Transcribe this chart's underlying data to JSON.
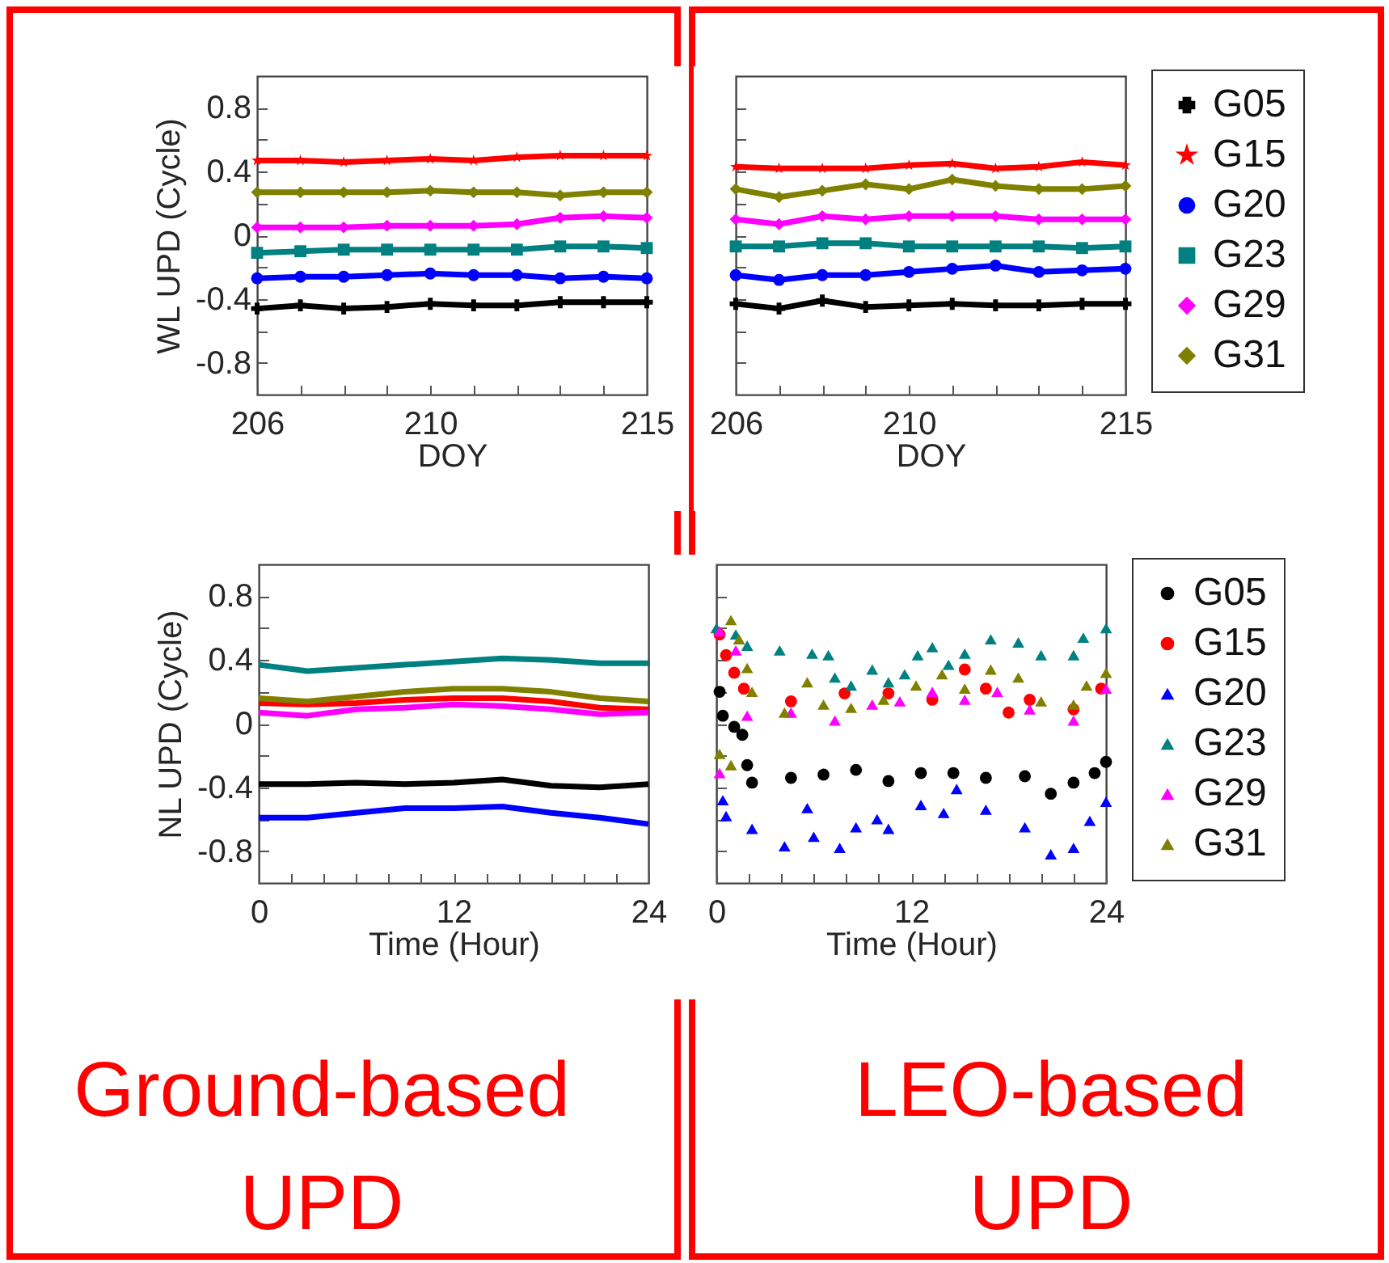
{
  "chart_data": [
    {
      "type": "line",
      "xlabel": "DOY",
      "ylabel": "WL UPD (Cycle)",
      "x": [
        206,
        207,
        208,
        209,
        210,
        211,
        212,
        213,
        214,
        215
      ],
      "xlim": [
        206,
        215
      ],
      "xticks": [
        206,
        {
          "value": 207,
          "label": null
        },
        {
          "value": 208,
          "label": null
        },
        {
          "value": 209,
          "label": null
        },
        210,
        {
          "value": 211,
          "label": null
        },
        {
          "value": 212,
          "label": null
        },
        {
          "value": 213,
          "label": null
        },
        {
          "value": 214,
          "label": null
        },
        215
      ],
      "ylim": [
        -1,
        1
      ],
      "yticks": [
        {
          "value": -0.8,
          "label": "-0.8"
        },
        {
          "value": -0.6,
          "label": null
        },
        {
          "value": -0.4,
          "label": "-0.4"
        },
        {
          "value": -0.2,
          "label": null
        },
        0,
        {
          "value": 0.2,
          "label": null
        },
        0.4,
        {
          "value": 0.6,
          "label": null
        },
        0.8
      ],
      "series": [
        {
          "color": "#000000",
          "marker": "cross",
          "values": [
            -0.46,
            -0.44,
            -0.46,
            -0.45,
            -0.43,
            -0.44,
            -0.44,
            -0.42,
            -0.42,
            -0.42
          ]
        },
        {
          "color": "#ff0000",
          "marker": "star",
          "values": [
            0.47,
            0.47,
            0.46,
            0.47,
            0.48,
            0.47,
            0.49,
            0.5,
            0.5,
            0.5
          ]
        },
        {
          "color": "#0000ff",
          "marker": "circle",
          "values": [
            -0.27,
            -0.26,
            -0.26,
            -0.25,
            -0.24,
            -0.25,
            -0.25,
            -0.27,
            -0.26,
            -0.27
          ]
        },
        {
          "color": "#008080",
          "marker": "square",
          "values": [
            -0.11,
            -0.1,
            -0.09,
            -0.09,
            -0.09,
            -0.09,
            -0.09,
            -0.07,
            -0.07,
            -0.08
          ]
        },
        {
          "color": "#ff00ff",
          "marker": "diamond",
          "values": [
            0.05,
            0.05,
            0.05,
            0.06,
            0.06,
            0.06,
            0.07,
            0.11,
            0.12,
            0.11
          ]
        },
        {
          "color": "#808000",
          "marker": "diamond",
          "values": [
            0.27,
            0.27,
            0.27,
            0.27,
            0.28,
            0.27,
            0.27,
            0.25,
            0.27,
            0.27
          ]
        }
      ]
    },
    {
      "type": "line",
      "xlabel": "DOY",
      "tick_labels": "x",
      "legend": "right",
      "x": [
        206,
        207,
        208,
        209,
        210,
        211,
        212,
        213,
        214,
        215
      ],
      "xlim": [
        206,
        215
      ],
      "xticks": [
        206,
        {
          "value": 207,
          "label": null
        },
        {
          "value": 208,
          "label": null
        },
        {
          "value": 209,
          "label": null
        },
        210,
        {
          "value": 211,
          "label": null
        },
        {
          "value": 212,
          "label": null
        },
        {
          "value": 213,
          "label": null
        },
        {
          "value": 214,
          "label": null
        },
        215
      ],
      "ylim": [
        -1,
        1
      ],
      "yticks": [
        -0.8,
        -0.6,
        -0.4,
        -0.2,
        0,
        0.2,
        0.4,
        0.6,
        0.8
      ],
      "series": [
        {
          "name": "G05",
          "color": "#000000",
          "marker": "cross",
          "values": [
            -0.43,
            -0.46,
            -0.41,
            -0.45,
            -0.44,
            -0.43,
            -0.44,
            -0.44,
            -0.43,
            -0.43
          ]
        },
        {
          "name": "G15",
          "color": "#ff0000",
          "marker": "star",
          "values": [
            0.43,
            0.42,
            0.42,
            0.42,
            0.44,
            0.45,
            0.42,
            0.43,
            0.46,
            0.44
          ]
        },
        {
          "name": "G20",
          "color": "#0000ff",
          "marker": "circle",
          "values": [
            -0.25,
            -0.28,
            -0.25,
            -0.25,
            -0.23,
            -0.21,
            -0.19,
            -0.23,
            -0.22,
            -0.21
          ]
        },
        {
          "name": "G23",
          "color": "#008080",
          "marker": "square",
          "values": [
            -0.07,
            -0.07,
            -0.05,
            -0.05,
            -0.07,
            -0.07,
            -0.07,
            -0.07,
            -0.08,
            -0.07
          ]
        },
        {
          "name": "G29",
          "color": "#ff00ff",
          "marker": "diamond",
          "values": [
            0.1,
            0.07,
            0.12,
            0.1,
            0.12,
            0.12,
            0.12,
            0.1,
            0.1,
            0.1
          ]
        },
        {
          "name": "G31",
          "color": "#808000",
          "marker": "diamond",
          "values": [
            0.29,
            0.24,
            0.28,
            0.32,
            0.29,
            0.35,
            0.31,
            0.29,
            0.29,
            0.31
          ]
        }
      ]
    },
    {
      "type": "line",
      "marker": "none",
      "xlabel": "Time (Hour)",
      "ylabel": "NL UPD (Cycle)",
      "annotations": [
        "Ground-based UPD"
      ],
      "x": [
        0,
        3,
        6,
        9,
        12,
        15,
        18,
        21,
        24
      ],
      "xlim": [
        0,
        24
      ],
      "xticks": [
        0,
        {
          "value": 2,
          "label": null
        },
        {
          "value": 4,
          "label": null
        },
        {
          "value": 6,
          "label": null
        },
        {
          "value": 8,
          "label": null
        },
        {
          "value": 10,
          "label": null
        },
        12,
        {
          "value": 14,
          "label": null
        },
        {
          "value": 16,
          "label": null
        },
        {
          "value": 18,
          "label": null
        },
        {
          "value": 20,
          "label": null
        },
        {
          "value": 22,
          "label": null
        },
        24
      ],
      "ylim": [
        -1,
        1
      ],
      "yticks": [
        {
          "value": -0.8,
          "label": "-0.8"
        },
        {
          "value": -0.6,
          "label": null
        },
        {
          "value": -0.4,
          "label": "-0.4"
        },
        {
          "value": -0.2,
          "label": null
        },
        0,
        {
          "value": 0.2,
          "label": null
        },
        0.4,
        {
          "value": 0.6,
          "label": null
        },
        0.8
      ],
      "series": [
        {
          "color": "#000000",
          "values": [
            -0.38,
            -0.38,
            -0.37,
            -0.38,
            -0.37,
            -0.35,
            -0.39,
            -0.4,
            -0.38
          ]
        },
        {
          "color": "#ff0000",
          "values": [
            0.13,
            0.12,
            0.13,
            0.15,
            0.16,
            0.16,
            0.14,
            0.1,
            0.09
          ]
        },
        {
          "color": "#0000ff",
          "values": [
            -0.59,
            -0.59,
            -0.56,
            -0.53,
            -0.53,
            -0.52,
            -0.56,
            -0.59,
            -0.63
          ]
        },
        {
          "color": "#008080",
          "values": [
            0.37,
            0.33,
            0.35,
            0.37,
            0.39,
            0.41,
            0.4,
            0.38,
            0.38
          ]
        },
        {
          "color": "#ff00ff",
          "values": [
            0.07,
            0.05,
            0.09,
            0.1,
            0.12,
            0.11,
            0.09,
            0.06,
            0.07
          ]
        },
        {
          "color": "#808000",
          "values": [
            0.16,
            0.14,
            0.17,
            0.2,
            0.22,
            0.22,
            0.2,
            0.16,
            0.14
          ]
        }
      ]
    },
    {
      "type": "scatter",
      "xlabel": "Time (Hour)",
      "tick_labels": "x",
      "legend": "right",
      "annotations": [
        "LEO-based UPD"
      ],
      "xlim": [
        0,
        24
      ],
      "xticks": [
        0,
        {
          "value": 2,
          "label": null
        },
        {
          "value": 4,
          "label": null
        },
        {
          "value": 6,
          "label": null
        },
        {
          "value": 8,
          "label": null
        },
        {
          "value": 10,
          "label": null
        },
        12,
        {
          "value": 14,
          "label": null
        },
        {
          "value": 16,
          "label": null
        },
        {
          "value": 18,
          "label": null
        },
        {
          "value": 20,
          "label": null
        },
        {
          "value": 22,
          "label": null
        },
        24
      ],
      "ylim": [
        -1,
        1
      ],
      "yticks": [
        -0.8,
        -0.6,
        -0.4,
        -0.2,
        0,
        0.2,
        0.4,
        0.6,
        0.8
      ],
      "series": [
        {
          "name": "G05",
          "color": "#000000",
          "marker": "circle",
          "x": [
            0.2,
            0.4,
            1.1,
            1.6,
            1.9,
            2.2,
            4.6,
            6.6,
            8.6,
            10.6,
            12.6,
            14.6,
            16.6,
            19,
            20.6,
            22,
            23.3,
            24
          ],
          "values": [
            0.2,
            0.05,
            -0.02,
            -0.07,
            -0.26,
            -0.37,
            -0.34,
            -0.32,
            -0.29,
            -0.36,
            -0.31,
            -0.31,
            -0.34,
            -0.33,
            -0.44,
            -0.37,
            -0.31,
            -0.24
          ]
        },
        {
          "name": "G15",
          "color": "#ff0000",
          "marker": "circle",
          "x": [
            0.2,
            0.6,
            1.1,
            1.7,
            4.6,
            7.9,
            10.6,
            13.3,
            15.3,
            16.6,
            18,
            19.3,
            22,
            23.7
          ],
          "values": [
            0.56,
            0.43,
            0.32,
            0.22,
            0.14,
            0.19,
            0.19,
            0.15,
            0.34,
            0.22,
            0.07,
            0.15,
            0.09,
            0.22
          ]
        },
        {
          "name": "G20",
          "color": "#0000ff",
          "marker": "triangle",
          "x": [
            0.4,
            0.6,
            2.2,
            4.2,
            5.6,
            6,
            7.6,
            8.6,
            9.9,
            10.6,
            12.6,
            14,
            14.8,
            16.6,
            19,
            20.6,
            22,
            23,
            24
          ],
          "values": [
            -0.48,
            -0.58,
            -0.66,
            -0.77,
            -0.53,
            -0.71,
            -0.78,
            -0.65,
            -0.6,
            -0.66,
            -0.51,
            -0.56,
            -0.41,
            -0.54,
            -0.65,
            -0.82,
            -0.78,
            -0.61,
            -0.49
          ]
        },
        {
          "name": "G23",
          "color": "#008080",
          "marker": "triangle",
          "x": [
            0,
            1.2,
            1.9,
            3.9,
            5.9,
            6.9,
            7.3,
            8.3,
            9.6,
            10.6,
            11.6,
            12.4,
            13.3,
            14.3,
            15.3,
            16.9,
            18.6,
            20,
            22,
            22.6,
            24
          ],
          "values": [
            0.6,
            0.56,
            0.49,
            0.46,
            0.44,
            0.43,
            0.29,
            0.24,
            0.34,
            0.26,
            0.31,
            0.43,
            0.48,
            0.37,
            0.44,
            0.53,
            0.51,
            0.43,
            0.43,
            0.54,
            0.6
          ]
        },
        {
          "name": "G29",
          "color": "#ff00ff",
          "marker": "triangle",
          "x": [
            0.2,
            1.2,
            0.2,
            1.9,
            4.6,
            7.3,
            9.6,
            11.3,
            13.3,
            15.3,
            17.3,
            19.3,
            22,
            24
          ],
          "values": [
            0.58,
            0.46,
            -0.31,
            0.05,
            0.07,
            0.02,
            0.12,
            0.14,
            0.2,
            0.15,
            0.2,
            0.09,
            0.02,
            0.22
          ]
        },
        {
          "name": "G31",
          "color": "#808000",
          "marker": "triangle",
          "x": [
            0.2,
            0.9,
            0.9,
            1.4,
            1.9,
            2.2,
            4.2,
            5.6,
            6.6,
            8.3,
            10.3,
            12.3,
            13.9,
            15.3,
            16.9,
            18.6,
            20,
            22,
            22.8,
            24
          ],
          "values": [
            -0.19,
            -0.26,
            0.65,
            0.53,
            0.35,
            0.2,
            0.07,
            0.26,
            0.12,
            0.1,
            0.15,
            0.24,
            0.31,
            0.22,
            0.34,
            0.29,
            0.14,
            0.12,
            0.24,
            0.32
          ]
        }
      ]
    }
  ]
}
